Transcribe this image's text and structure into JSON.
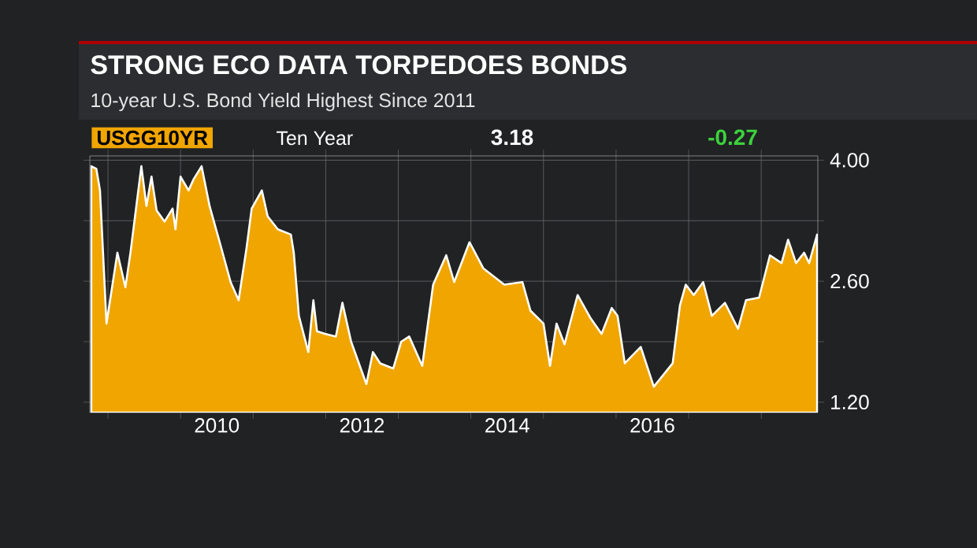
{
  "chart_data": {
    "type": "area",
    "title": "STRONG ECO DATA TORPEDOES BONDS",
    "subtitle": "10-year U.S. Bond Yield Highest Since 2011",
    "annotations": [
      "USGG10YR",
      "Ten Year",
      "3.18",
      "-0.27"
    ],
    "x": [
      2008.77,
      2008.84,
      2008.89,
      2008.98,
      2009.04,
      2009.13,
      2009.24,
      2009.31,
      2009.46,
      2009.53,
      2009.6,
      2009.67,
      2009.78,
      2009.89,
      2009.93,
      2010.0,
      2010.11,
      2010.18,
      2010.29,
      2010.4,
      2010.54,
      2010.69,
      2010.8,
      2010.91,
      2010.98,
      2011.12,
      2011.2,
      2011.34,
      2011.52,
      2011.56,
      2011.63,
      2011.76,
      2011.83,
      2011.88,
      2011.99,
      2012.14,
      2012.23,
      2012.35,
      2012.56,
      2012.65,
      2012.75,
      2012.93,
      2013.04,
      2013.15,
      2013.33,
      2013.48,
      2013.66,
      2013.77,
      2013.98,
      2014.02,
      2014.17,
      2014.46,
      2014.71,
      2014.82,
      2015.0,
      2015.09,
      2015.18,
      2015.29,
      2015.47,
      2015.65,
      2015.8,
      2015.94,
      2016.02,
      2016.12,
      2016.34,
      2016.52,
      2016.78,
      2016.88,
      2016.96,
      2017.07,
      2017.2,
      2017.32,
      2017.5,
      2017.68,
      2017.79,
      2017.97,
      2018.12,
      2018.28,
      2018.37,
      2018.48,
      2018.59,
      2018.66,
      2018.77
    ],
    "series": [
      {
        "color": "#f0a500",
        "values": [
          3.93,
          3.9,
          3.65,
          2.11,
          2.44,
          2.93,
          2.53,
          2.93,
          3.93,
          3.47,
          3.81,
          3.42,
          3.29,
          3.44,
          3.2,
          3.81,
          3.65,
          3.78,
          3.93,
          3.47,
          3.05,
          2.59,
          2.38,
          2.99,
          3.44,
          3.65,
          3.35,
          3.2,
          3.14,
          2.93,
          2.2,
          1.78,
          2.38,
          2.02,
          1.99,
          1.96,
          2.35,
          1.9,
          1.41,
          1.78,
          1.65,
          1.59,
          1.9,
          1.96,
          1.62,
          2.56,
          2.9,
          2.59,
          3.05,
          2.99,
          2.75,
          2.56,
          2.59,
          2.26,
          2.11,
          1.62,
          2.11,
          1.87,
          2.44,
          2.17,
          1.99,
          2.29,
          2.2,
          1.65,
          1.84,
          1.38,
          1.65,
          2.32,
          2.56,
          2.44,
          2.59,
          2.2,
          2.35,
          2.05,
          2.38,
          2.41,
          2.9,
          2.81,
          3.08,
          2.81,
          2.93,
          2.81,
          3.14
        ]
      }
    ],
    "xlim": [
      2008.75,
      2018.78
    ],
    "ylim": [
      1.08,
      4.05
    ],
    "xticks": [
      {
        "value": 2009,
        "label": null
      },
      {
        "value": 2010,
        "label": null
      },
      {
        "value": 2010.5,
        "label": "2010"
      },
      {
        "value": 2011,
        "label": null
      },
      {
        "value": 2012,
        "label": null
      },
      {
        "value": 2012.5,
        "label": "2012"
      },
      {
        "value": 2013,
        "label": null
      },
      {
        "value": 2014,
        "label": null
      },
      {
        "value": 2014.5,
        "label": "2014"
      },
      {
        "value": 2015,
        "label": null
      },
      {
        "value": 2016,
        "label": null
      },
      {
        "value": 2016.5,
        "label": "2016"
      },
      {
        "value": 2017,
        "label": null
      },
      {
        "value": 2018,
        "label": null
      }
    ],
    "yticks": [
      {
        "value": 1.2,
        "label": "1.20"
      },
      {
        "value": 1.9,
        "label": null
      },
      {
        "value": 2.6,
        "label": "2.60"
      },
      {
        "value": 3.3,
        "label": null
      },
      {
        "value": 4.0,
        "label": "4.00"
      }
    ],
    "grid": true,
    "marker": "none"
  }
}
